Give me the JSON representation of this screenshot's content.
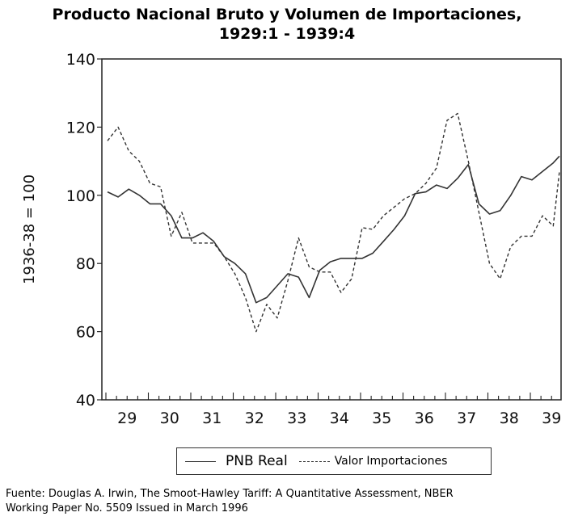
{
  "chart_data": {
    "type": "line",
    "title": "Producto Nacional Bruto y Volumen de Importaciones,",
    "subtitle": "1929:1 - 1939:4",
    "xlabel": "",
    "ylabel": "1936-38 = 100",
    "ylim": [
      40,
      140
    ],
    "yticks": [
      "40",
      "60",
      "80",
      "100",
      "120",
      "140"
    ],
    "xticks": [
      "29",
      "30",
      "31",
      "32",
      "33",
      "34",
      "35",
      "36",
      "37",
      "38",
      "39"
    ],
    "grid": false,
    "legend_position": "bottom",
    "start_year": 1929,
    "series": [
      {
        "name": "PNB Real",
        "style": "solid",
        "color": "#333333",
        "values": [
          101,
          99.5,
          101.8,
          100,
          97.5,
          97.5,
          94,
          87.5,
          87.5,
          89,
          86.5,
          82,
          80,
          77,
          68.5,
          70,
          73.5,
          77,
          76,
          70,
          78,
          80.5,
          81.5,
          81.5,
          81.5,
          83,
          86.5,
          90,
          94,
          100.5,
          101,
          103,
          102,
          105,
          109,
          97.5,
          94.5,
          95.5,
          100,
          105.5,
          104.5,
          107,
          109.5,
          111.5
        ]
      },
      {
        "name": "Valor Importaciones",
        "style": "dashed",
        "color": "#333333",
        "values": [
          116,
          120,
          113,
          110,
          103.5,
          102.5,
          88,
          95,
          86,
          86,
          86,
          82,
          77,
          70,
          60,
          68,
          64,
          75,
          87.5,
          79,
          77.5,
          77.5,
          71.5,
          75.5,
          90.5,
          90,
          94,
          96.5,
          99,
          100.5,
          103.5,
          108,
          122,
          124,
          110,
          95,
          80,
          75.5,
          85,
          88,
          88,
          94,
          91,
          107
        ]
      }
    ]
  },
  "source": {
    "line1": "Fuente: Douglas A. Irwin, The Smoot-Hawley Tariff: A Quantitative Assessment, NBER",
    "line2": "Working Paper No. 5509 Issued in March 1996"
  }
}
